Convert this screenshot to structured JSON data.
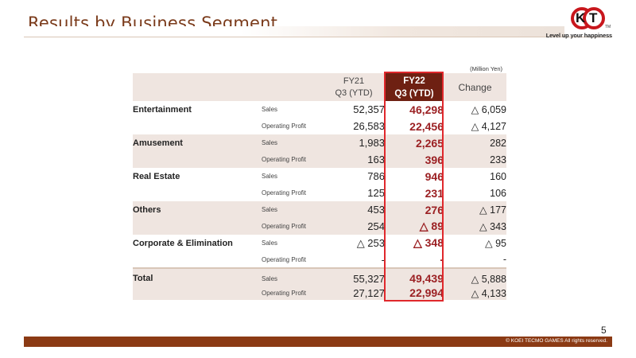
{
  "title": "Results by Business Segment",
  "logo": {
    "letter1": "K",
    "letter2": "T",
    "tm": "TM",
    "tagline": "Level up your happiness"
  },
  "unit": "(Million Yen)",
  "columns": {
    "fy21_line1": "FY21",
    "fy21_line2": "Q3 (YTD)",
    "fy22_line1": "FY22",
    "fy22_line2": "Q3 (YTD)",
    "change": "Change"
  },
  "segments": [
    {
      "name": "Entertainment",
      "rows": [
        {
          "metric": "Sales",
          "fy21": "52,357",
          "fy22": "46,298",
          "change": "△ 6,059"
        },
        {
          "metric": "Operating Profit",
          "fy21": "26,583",
          "fy22": "22,456",
          "change": "△ 4,127"
        }
      ]
    },
    {
      "name": "Amusement",
      "rows": [
        {
          "metric": "Sales",
          "fy21": "1,983",
          "fy22": "2,265",
          "change": "282"
        },
        {
          "metric": "Operating Profit",
          "fy21": "163",
          "fy22": "396",
          "change": "233"
        }
      ]
    },
    {
      "name": "Real Estate",
      "rows": [
        {
          "metric": "Sales",
          "fy21": "786",
          "fy22": "946",
          "change": "160"
        },
        {
          "metric": "Operating Profit",
          "fy21": "125",
          "fy22": "231",
          "change": "106"
        }
      ]
    },
    {
      "name": "Others",
      "rows": [
        {
          "metric": "Sales",
          "fy21": "453",
          "fy22": "276",
          "change": "△ 177"
        },
        {
          "metric": "Operating Profit",
          "fy21": "254",
          "fy22": "△ 89",
          "change": "△ 343"
        }
      ]
    },
    {
      "name": "Corporate & Elimination",
      "rows": [
        {
          "metric": "Sales",
          "fy21": "△ 253",
          "fy22": "△ 348",
          "change": "△ 95"
        },
        {
          "metric": "Operating Profit",
          "fy21": "-",
          "fy22": "-",
          "change": "-"
        }
      ]
    },
    {
      "name": "Total",
      "rows": [
        {
          "metric": "Sales",
          "fy21": "55,327",
          "fy22": "49,439",
          "change": "△ 5,888"
        },
        {
          "metric": "Operating Profit",
          "fy21": "27,127",
          "fy22": "22,994",
          "change": "△ 4,133"
        }
      ]
    }
  ],
  "page_number": "5",
  "footer": "© KOEI TECMO GAMES All rights reserved.",
  "colors": {
    "title": "#7a3a1a",
    "accent": "#6e2012",
    "highlight_border": "#e0282c",
    "footer": "#8b3a14",
    "row_shade": "#efe5e0"
  }
}
